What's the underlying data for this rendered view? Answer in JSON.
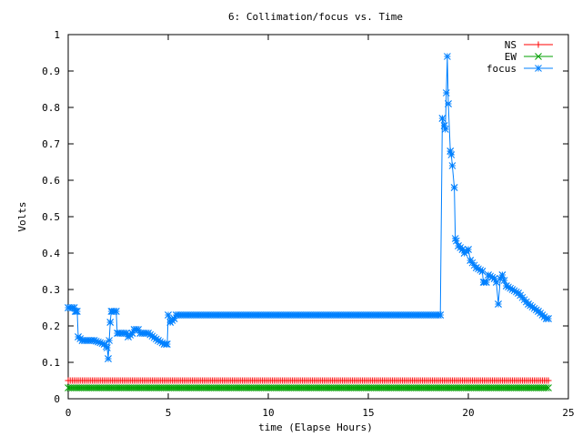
{
  "chart_data": {
    "type": "line",
    "title": "6: Collimation/focus vs. Time",
    "xlabel": "time (Elapse Hours)",
    "ylabel": "Volts",
    "xlim": [
      0,
      25
    ],
    "ylim": [
      0,
      1
    ],
    "xticks": [
      0,
      5,
      10,
      15,
      20,
      25
    ],
    "yticks": [
      0,
      0.1,
      0.2,
      0.3,
      0.4,
      0.5,
      0.6,
      0.7,
      0.8,
      0.9,
      1
    ],
    "xtick_labels": [
      "0",
      "5",
      "10",
      "15",
      "20",
      "25"
    ],
    "ytick_labels": [
      "0",
      "0.1",
      "0.2",
      "0.3",
      "0.4",
      "0.5",
      "0.6",
      "0.7",
      "0.8",
      "0.9",
      "1"
    ],
    "grid": false,
    "legend_position": "top-right",
    "series": [
      {
        "name": "NS",
        "color": "#ff0000",
        "marker": "plus",
        "x_start": 0.0,
        "x_end": 24.0,
        "x_step": 0.1,
        "constant_value": 0.05
      },
      {
        "name": "EW",
        "color": "#00a000",
        "marker": "cross",
        "x_start": 0.0,
        "x_end": 24.0,
        "x_step": 0.1,
        "constant_value": 0.03
      },
      {
        "name": "focus",
        "color": "#0080ff",
        "marker": "star",
        "x_start": 0.0,
        "x_end": 24.0,
        "x_step": 0.1,
        "keyframes": [
          [
            0.0,
            0.25
          ],
          [
            0.3,
            0.25
          ],
          [
            0.35,
            0.24
          ],
          [
            0.45,
            0.24
          ],
          [
            0.5,
            0.17
          ],
          [
            0.7,
            0.16
          ],
          [
            1.3,
            0.16
          ],
          [
            1.8,
            0.15
          ],
          [
            1.95,
            0.14
          ],
          [
            2.0,
            0.11
          ],
          [
            2.05,
            0.16
          ],
          [
            2.1,
            0.21
          ],
          [
            2.15,
            0.24
          ],
          [
            2.4,
            0.24
          ],
          [
            2.45,
            0.18
          ],
          [
            2.9,
            0.18
          ],
          [
            3.0,
            0.17
          ],
          [
            3.2,
            0.18
          ],
          [
            3.3,
            0.19
          ],
          [
            3.5,
            0.19
          ],
          [
            3.6,
            0.18
          ],
          [
            4.0,
            0.18
          ],
          [
            4.5,
            0.16
          ],
          [
            4.8,
            0.15
          ],
          [
            4.95,
            0.15
          ],
          [
            5.0,
            0.23
          ],
          [
            5.1,
            0.21
          ],
          [
            5.3,
            0.22
          ],
          [
            5.4,
            0.23
          ],
          [
            18.6,
            0.23
          ],
          [
            18.7,
            0.77
          ],
          [
            18.8,
            0.75
          ],
          [
            18.85,
            0.74
          ],
          [
            18.95,
            0.94
          ],
          [
            19.0,
            0.81
          ],
          [
            19.1,
            0.68
          ],
          [
            19.15,
            0.67
          ],
          [
            19.3,
            0.58
          ],
          [
            19.35,
            0.44
          ],
          [
            19.5,
            0.42
          ],
          [
            19.7,
            0.41
          ],
          [
            19.8,
            0.4
          ],
          [
            20.0,
            0.41
          ],
          [
            20.1,
            0.38
          ],
          [
            20.4,
            0.36
          ],
          [
            20.7,
            0.35
          ],
          [
            20.75,
            0.32
          ],
          [
            20.9,
            0.32
          ],
          [
            21.0,
            0.34
          ],
          [
            21.3,
            0.33
          ],
          [
            21.4,
            0.32
          ],
          [
            21.5,
            0.26
          ],
          [
            21.6,
            0.33
          ],
          [
            21.7,
            0.34
          ],
          [
            21.9,
            0.31
          ],
          [
            22.5,
            0.29
          ],
          [
            23.0,
            0.26
          ],
          [
            23.5,
            0.24
          ],
          [
            23.9,
            0.22
          ],
          [
            24.0,
            0.22
          ]
        ]
      }
    ]
  }
}
